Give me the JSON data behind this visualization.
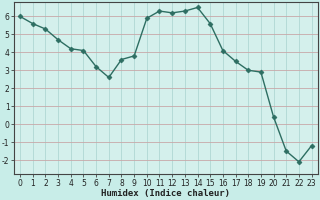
{
  "title": "",
  "xlabel": "Humidex (Indice chaleur)",
  "ylabel": "",
  "x_values": [
    0,
    1,
    2,
    3,
    4,
    5,
    6,
    7,
    8,
    9,
    10,
    11,
    12,
    13,
    14,
    15,
    16,
    17,
    18,
    19,
    20,
    21,
    22,
    23
  ],
  "y_values": [
    6.0,
    5.6,
    5.3,
    4.7,
    4.2,
    4.1,
    3.2,
    2.6,
    3.6,
    3.8,
    5.9,
    6.3,
    6.2,
    6.3,
    6.5,
    5.6,
    4.1,
    3.5,
    3.0,
    2.9,
    0.4,
    -1.5,
    -2.1,
    -1.2
  ],
  "line_color": "#2d6e62",
  "bg_color": "#c8ede8",
  "plot_bg_color": "#d4f0ec",
  "hgrid_color": "#c8a8a8",
  "vgrid_color": "#b0d8d4",
  "tick_label_color": "#222222",
  "xlabel_color": "#222222",
  "ylim": [
    -2.8,
    6.8
  ],
  "yticks": [
    -2,
    -1,
    0,
    1,
    2,
    3,
    4,
    5,
    6
  ],
  "xticks": [
    0,
    1,
    2,
    3,
    4,
    5,
    6,
    7,
    8,
    9,
    10,
    11,
    12,
    13,
    14,
    15,
    16,
    17,
    18,
    19,
    20,
    21,
    22,
    23
  ],
  "marker": "D",
  "marker_size": 2.5,
  "line_width": 1.0,
  "tick_fontsize": 5.5,
  "xlabel_fontsize": 6.5
}
